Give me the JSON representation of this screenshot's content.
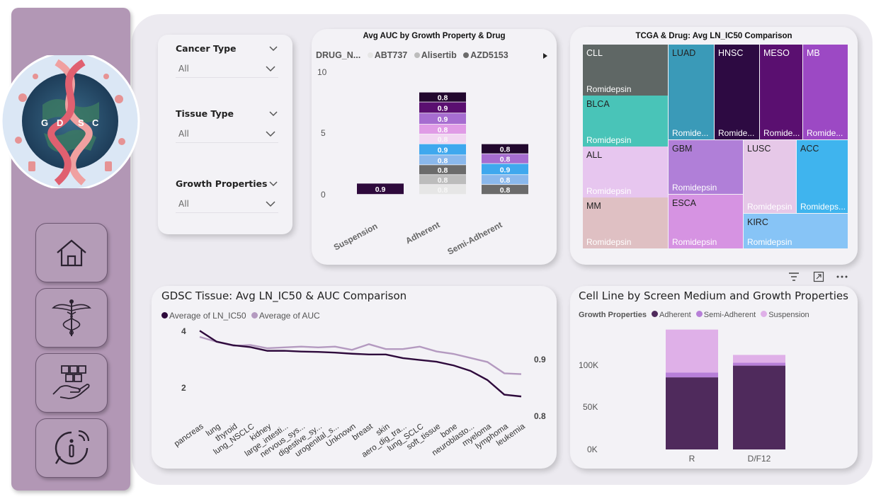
{
  "sidebar": {
    "logo": {
      "letters": [
        "G",
        "D",
        "S",
        "C"
      ]
    },
    "nav": [
      {
        "name": "home-icon",
        "label": "Home"
      },
      {
        "name": "caduceus-icon",
        "label": "Medical"
      },
      {
        "name": "hand-boxes-icon",
        "label": "Supply"
      },
      {
        "name": "info-icon",
        "label": "Info"
      }
    ]
  },
  "slicers": [
    {
      "title": "Cancer Type",
      "value": "All"
    },
    {
      "title": "Tissue Type",
      "value": "All"
    },
    {
      "title": "Growth Properties",
      "value": "All"
    }
  ],
  "bar_chart": {
    "title": "Avg AUC by Growth Property & Drug",
    "legend_label": "DRUG_N...",
    "legend_items": [
      {
        "name": "ABT737",
        "color": "#e6e6e6"
      },
      {
        "name": "Alisertib",
        "color": "#bcbcbc"
      },
      {
        "name": "AZD5153",
        "color": "#6b6b6b"
      }
    ],
    "yticks": [
      "10",
      "5",
      "0"
    ],
    "categories": [
      "Suspension",
      "Adherent",
      "Semi-Adherent"
    ]
  },
  "treemap": {
    "title": "TCGA & Drug: Avg LN_IC50 Comparison",
    "cells": [
      {
        "label": "CLL",
        "sub": "Romidepsin",
        "color": "#5f6765",
        "dark": true
      },
      {
        "label": "BLCA",
        "sub": "Romidepsin",
        "color": "#49c4b8",
        "dark": false
      },
      {
        "label": "ALL",
        "sub": "Romidepsin",
        "color": "#e7c6ef",
        "dark": false
      },
      {
        "label": "MM",
        "sub": "Romidepsin",
        "color": "#dfc0c3",
        "dark": false
      },
      {
        "label": "LUAD",
        "sub": "Romide...",
        "color": "#3a9ab8",
        "dark": false
      },
      {
        "label": "HNSC",
        "sub": "Romide...",
        "color": "#2d0a42",
        "dark": true
      },
      {
        "label": "MESO",
        "sub": "Romide...",
        "color": "#5a0f70",
        "dark": true
      },
      {
        "label": "MB",
        "sub": "Romide...",
        "color": "#9c49c4",
        "dark": true
      },
      {
        "label": "GBM",
        "sub": "Romidepsin",
        "color": "#b07fd8",
        "dark": false
      },
      {
        "label": "ESCA",
        "sub": "Romidepsin",
        "color": "#d693e2",
        "dark": false
      },
      {
        "label": "LUSC",
        "sub": "Romidepsin",
        "color": "#e6c8e8",
        "dark": false
      },
      {
        "label": "ACC",
        "sub": "Romideps...",
        "color": "#3fb4ee",
        "dark": false
      },
      {
        "label": "KIRC",
        "sub": "Romidepsin",
        "color": "#87c4f6",
        "dark": false
      }
    ]
  },
  "line_chart": {
    "title": "GDSC Tissue: Avg LN_IC50 & AUC Comparison",
    "legend": [
      {
        "name": "Average of LN_IC50",
        "color": "#2e0a3c"
      },
      {
        "name": "Average of AUC",
        "color": "#b49ac0"
      }
    ],
    "left_ticks": [
      "4",
      "2"
    ],
    "right_ticks": [
      "0.9",
      "0.8"
    ]
  },
  "stacked_chart": {
    "title": "Cell Line by Screen Medium and Growth Properties",
    "legend_title": "Growth Properties",
    "legend": [
      {
        "name": "Adherent",
        "color": "#4f2a5c"
      },
      {
        "name": "Semi-Adherent",
        "color": "#b77fd8"
      },
      {
        "name": "Suspension",
        "color": "#dfb0e8"
      }
    ],
    "yticks": [
      "100K",
      "50K",
      "0K"
    ]
  },
  "toolbar": {
    "icons": [
      "filter-icon",
      "focus-mode-icon",
      "more-options-icon"
    ]
  },
  "chart_data": [
    {
      "type": "bar",
      "title": "Avg AUC by Growth Property & Drug",
      "categories": [
        "Suspension",
        "Adherent",
        "Semi-Adherent"
      ],
      "ylim": [
        0,
        10
      ],
      "stacks": [
        {
          "category": "Suspension",
          "segments": [
            {
              "value": 0.9,
              "label": "0.9",
              "color": "#2e0a3c"
            }
          ]
        },
        {
          "category": "Adherent",
          "segments": [
            {
              "value": 0.8,
              "label": "0.8",
              "color": "#e6e6e6"
            },
            {
              "value": 0.8,
              "label": "0.8",
              "color": "#bcbcbc"
            },
            {
              "value": 0.8,
              "label": "0.8",
              "color": "#6b6b6b"
            },
            {
              "value": 0.8,
              "label": "0.8",
              "color": "#8ab8ec"
            },
            {
              "value": 0.9,
              "label": "0.9",
              "color": "#3fa8ee"
            },
            {
              "value": 0.8,
              "label": "0.8",
              "color": "#f2d6f2"
            },
            {
              "value": 0.8,
              "label": "0.8",
              "color": "#e09be6"
            },
            {
              "value": 0.9,
              "label": "0.9",
              "color": "#a66cd0"
            },
            {
              "value": 0.9,
              "label": "0.9",
              "color": "#5a0f70"
            },
            {
              "value": 0.8,
              "label": "0.8",
              "color": "#22082e"
            }
          ]
        },
        {
          "category": "Semi-Adherent",
          "segments": [
            {
              "value": 0.8,
              "label": "0.8",
              "color": "#6b6b6b"
            },
            {
              "value": 0.8,
              "label": "0.8",
              "color": "#8ab8ec"
            },
            {
              "value": 0.9,
              "label": "0.9",
              "color": "#3fa8ee"
            },
            {
              "value": 0.8,
              "label": "0.8",
              "color": "#a66cd0"
            },
            {
              "value": 0.8,
              "label": "0.8",
              "color": "#22082e"
            }
          ]
        }
      ]
    },
    {
      "type": "line",
      "title": "GDSC Tissue: Avg LN_IC50 & AUC Comparison",
      "x": [
        "pancreas",
        "lung",
        "thyroid",
        "lung_NSCLC",
        "kidney",
        "large_intesti...",
        "nervous_sys...",
        "digestive_sy...",
        "urogenital_s...",
        "Unknown",
        "breast",
        "skin",
        "aero_dig_tra...",
        "lung_SCLC",
        "soft_tissue",
        "bone",
        "neuroblasto...",
        "myeloma",
        "lymphoma",
        "leukemia"
      ],
      "series": [
        {
          "name": "Average of LN_IC50",
          "axis": "left",
          "values": [
            3.85,
            3.55,
            3.45,
            3.4,
            3.3,
            3.3,
            3.28,
            3.27,
            3.25,
            3.22,
            3.2,
            3.2,
            3.1,
            3.05,
            3.0,
            2.9,
            2.75,
            2.5,
            2.1,
            2.05
          ]
        },
        {
          "name": "Average of AUC",
          "axis": "right",
          "values": [
            0.902,
            0.896,
            0.891,
            0.892,
            0.888,
            0.889,
            0.89,
            0.889,
            0.89,
            0.886,
            0.893,
            0.887,
            0.887,
            0.89,
            0.884,
            0.881,
            0.876,
            0.871,
            0.857,
            0.856
          ]
        }
      ],
      "ylim_left": [
        1.2,
        4.3
      ],
      "ylim_right": [
        0.79,
        0.93
      ]
    },
    {
      "type": "bar",
      "title": "Cell Line by Screen Medium and Growth Properties",
      "categories": [
        "R",
        "D/F12"
      ],
      "series": [
        {
          "name": "Adherent",
          "values": [
            74000,
            86000
          ]
        },
        {
          "name": "Semi-Adherent",
          "values": [
            5000,
            3000
          ]
        },
        {
          "name": "Suspension",
          "values": [
            44000,
            8000
          ]
        }
      ],
      "ylim": [
        0,
        130000
      ]
    }
  ]
}
